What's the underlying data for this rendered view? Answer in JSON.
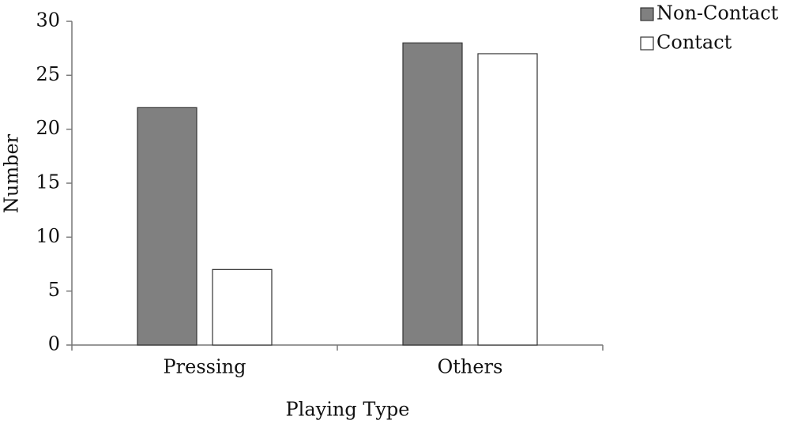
{
  "chart_data": {
    "type": "bar",
    "x_label": "Playing Type",
    "y_label": "Number",
    "categories": [
      "Pressing",
      "Others"
    ],
    "series": [
      {
        "name": "Non-Contact",
        "color": "#808080",
        "values": [
          22,
          28
        ]
      },
      {
        "name": "Contact",
        "color": "#ffffff",
        "values": [
          7,
          27
        ]
      }
    ],
    "ylim": [
      0,
      30
    ],
    "yticks": [
      0,
      5,
      10,
      15,
      20,
      25,
      30
    ],
    "grid": false,
    "legend": "top-right"
  }
}
